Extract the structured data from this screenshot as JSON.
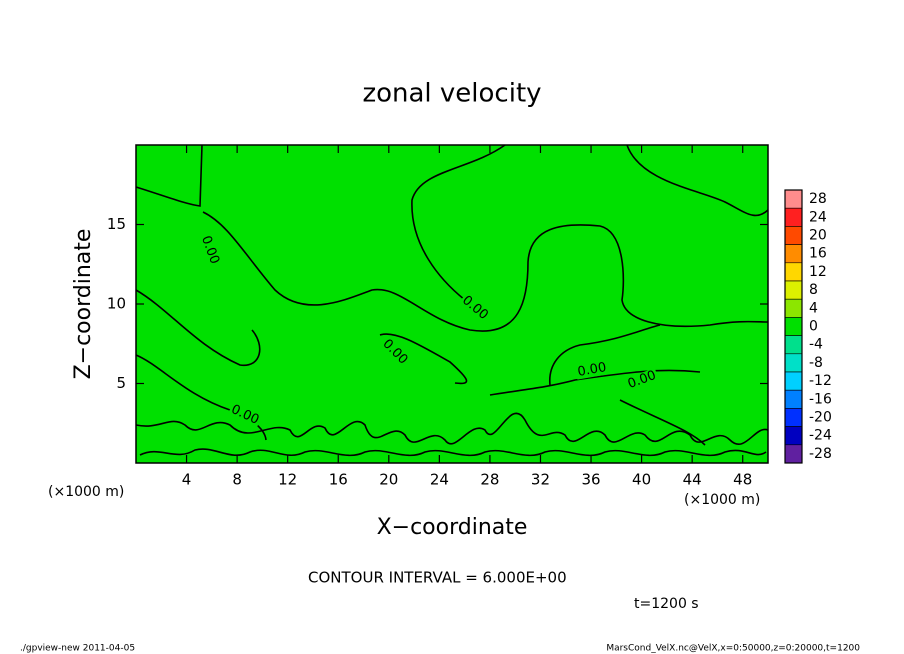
{
  "chart_data": {
    "type": "contour",
    "title": "zonal velocity",
    "x_label": "X−coordinate",
    "y_label": "Z−coordinate",
    "x_unit": "(×1000 m)",
    "y_unit": "(×1000 m)",
    "xlim": [
      0,
      50
    ],
    "ylim": [
      0,
      20
    ],
    "xticks": [
      4,
      8,
      12,
      16,
      20,
      24,
      28,
      32,
      36,
      40,
      44,
      48
    ],
    "yticks": [
      5,
      10,
      15
    ],
    "fill_color": "#00e000",
    "contour_labels": [
      "0.00",
      "0.00",
      "0.00",
      "0.00",
      "0.00",
      "0.00"
    ],
    "colorbar": {
      "levels": [
        28,
        24,
        20,
        16,
        12,
        8,
        4,
        0,
        -4,
        -8,
        -12,
        -16,
        -20,
        -24,
        -28
      ],
      "colors": [
        "#ff8c8c",
        "#ff2020",
        "#ff4a00",
        "#ff8c00",
        "#ffd700",
        "#dcf000",
        "#8ce600",
        "#00e000",
        "#00e08c",
        "#00e0c8",
        "#00d0ff",
        "#0080ff",
        "#0030ff",
        "#0000c0",
        "#6020a0"
      ]
    },
    "contour_interval": "CONTOUR INTERVAL = 6.000E+00",
    "time_label": "t=1200 s",
    "footer_left": "./gpview-new   2011-04-05",
    "footer_right": "MarsCond_VelX.nc@VelX,x=0:50000,z=0:20000,t=1200"
  }
}
